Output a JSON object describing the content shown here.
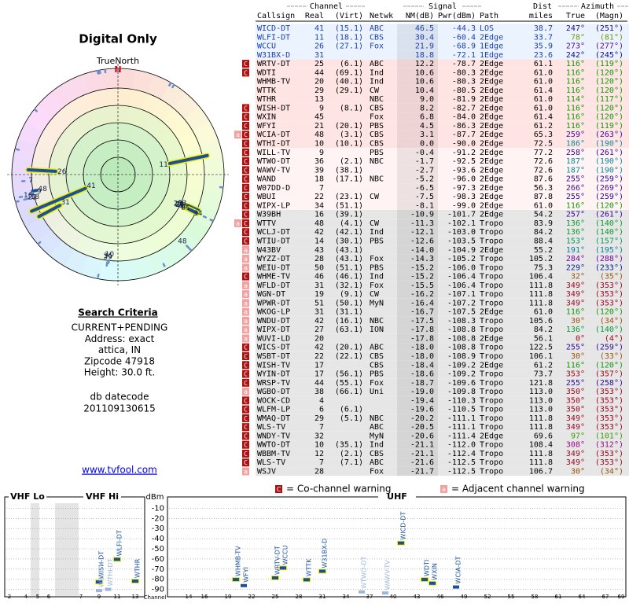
{
  "left": {
    "title": "Digital Only",
    "compass": "TrueNorth",
    "north": "N",
    "criteria_heading": "Search Criteria",
    "criteria": [
      "CURRENT+PENDING",
      "Address: exact",
      "attica, IN",
      "Zipcode 47918",
      "Height: 30.0 ft."
    ],
    "db_label": "db datecode",
    "db_code": "201109130615",
    "link": "www.tvfool.com"
  },
  "table": {
    "group_headers": [
      "Channel",
      "Signal",
      "Dist",
      "Azimuth"
    ],
    "headers": [
      "Callsign",
      "Real",
      "(Virt)",
      "Netwk",
      "NM(dB)",
      "Pwr(dBm)",
      "Path",
      "miles",
      "True",
      "(Magn)"
    ],
    "rows": [
      [
        "WICD-DT",
        41,
        "(15.1)",
        "ABC",
        "46.5",
        "-44.3",
        "LOS",
        "38.7",
        "247°",
        "(251°)",
        []
      ],
      [
        "WLFI-DT",
        11,
        "(18.1)",
        "CBS",
        "30.4",
        "-60.4",
        "2Edge",
        "33.7",
        "78°",
        "(81°)",
        []
      ],
      [
        "WCCU",
        26,
        "(27.1)",
        "Fox",
        "21.9",
        "-68.9",
        "1Edge",
        "35.9",
        "273°",
        "(277°)",
        []
      ],
      [
        "W31BX-D",
        31,
        null,
        null,
        "18.8",
        "-72.1",
        "1Edge",
        "23.6",
        "242°",
        "(245°)",
        []
      ],
      [
        "WRTV-DT",
        25,
        "(6.1)",
        "ABC",
        "12.2",
        "-78.7",
        "2Edge",
        "61.1",
        "116°",
        "(119°)",
        [
          "C"
        ]
      ],
      [
        "WDTI",
        44,
        "(69.1)",
        "Ind",
        "10.6",
        "-80.3",
        "2Edge",
        "61.0",
        "116°",
        "(120°)",
        [
          "C"
        ]
      ],
      [
        "WHMB-TV",
        20,
        "(40.1)",
        "Ind",
        "10.6",
        "-80.3",
        "2Edge",
        "61.0",
        "116°",
        "(120°)",
        []
      ],
      [
        "WTTK",
        29,
        "(29.1)",
        "CW",
        "10.4",
        "-80.5",
        "2Edge",
        "61.4",
        "116°",
        "(120°)",
        []
      ],
      [
        "WTHR",
        13,
        null,
        "NBC",
        "9.0",
        "-81.9",
        "2Edge",
        "61.0",
        "114°",
        "(117°)",
        []
      ],
      [
        "WISH-DT",
        9,
        "(8.1)",
        "CBS",
        "8.2",
        "-82.7",
        "2Edge",
        "61.0",
        "116°",
        "(120°)",
        [
          "C"
        ]
      ],
      [
        "WXIN",
        45,
        null,
        "Fox",
        "6.8",
        "-84.0",
        "2Edge",
        "61.4",
        "116°",
        "(120°)",
        [
          "C"
        ]
      ],
      [
        "WFYI",
        21,
        "(20.1)",
        "PBS",
        "4.5",
        "-86.3",
        "2Edge",
        "61.2",
        "116°",
        "(119°)",
        [
          "C"
        ]
      ],
      [
        "WCIA-DT",
        48,
        "(3.1)",
        "CBS",
        "3.1",
        "-87.7",
        "2Edge",
        "65.3",
        "259°",
        "(263°)",
        [
          "a",
          "C"
        ]
      ],
      [
        "WTHI-DT",
        10,
        "(10.1)",
        "CBS",
        "0.0",
        "-90.0",
        "2Edge",
        "72.5",
        "186°",
        "(190°)",
        [
          "C"
        ]
      ],
      [
        "WILL-TV",
        9,
        null,
        "PBS",
        "-0.4",
        "-91.2",
        "2Edge",
        "77.2",
        "258°",
        "(261°)",
        [
          "C"
        ]
      ],
      [
        "WTWO-DT",
        36,
        "(2.1)",
        "NBC",
        "-1.7",
        "-92.5",
        "2Edge",
        "72.6",
        "187°",
        "(190°)",
        [
          "C"
        ]
      ],
      [
        "WAWV-TV",
        39,
        "(38.1)",
        null,
        "-2.7",
        "-93.6",
        "2Edge",
        "72.6",
        "187°",
        "(190°)",
        [
          "C"
        ]
      ],
      [
        "WAND",
        18,
        "(17.1)",
        "NBC",
        "-5.2",
        "-96.0",
        "2Edge",
        "87.6",
        "255°",
        "(259°)",
        [
          "C"
        ]
      ],
      [
        "W07DD-D",
        7,
        null,
        null,
        "-6.5",
        "-97.3",
        "2Edge",
        "56.3",
        "266°",
        "(269°)",
        [
          "C"
        ]
      ],
      [
        "WBUI",
        22,
        "(23.1)",
        "CW",
        "-7.5",
        "-98.3",
        "2Edge",
        "87.8",
        "255°",
        "(259°)",
        [
          "C"
        ]
      ],
      [
        "WIPX-LP",
        34,
        "(51.1)",
        null,
        "-8.1",
        "-99.0",
        "2Edge",
        "61.0",
        "116°",
        "(120°)",
        [
          "C"
        ]
      ],
      [
        "W39BH",
        16,
        "(39.1)",
        null,
        "-10.9",
        "-101.7",
        "2Edge",
        "54.2",
        "257°",
        "(261°)",
        [
          "C"
        ]
      ],
      [
        "WTTV",
        48,
        "(4.1)",
        "CW",
        "-11.3",
        "-102.1",
        "Tropo",
        "83.9",
        "136°",
        "(140°)",
        [
          "a",
          "C"
        ]
      ],
      [
        "WCLJ-DT",
        42,
        "(42.1)",
        "Ind",
        "-12.1",
        "-103.0",
        "Tropo",
        "84.2",
        "136°",
        "(140°)",
        [
          "C"
        ]
      ],
      [
        "WTIU-DT",
        14,
        "(30.1)",
        "PBS",
        "-12.6",
        "-103.5",
        "Tropo",
        "88.4",
        "153°",
        "(157°)",
        [
          "C"
        ]
      ],
      [
        "W43BV",
        43,
        "(43.1)",
        null,
        "-14.0",
        "-104.9",
        "2Edge",
        "55.2",
        "191°",
        "(195°)",
        [
          "a"
        ]
      ],
      [
        "WYZZ-DT",
        28,
        "(43.1)",
        "Fox",
        "-14.3",
        "-105.2",
        "Tropo",
        "105.2",
        "284°",
        "(288°)",
        [
          "a"
        ]
      ],
      [
        "WEIU-DT",
        50,
        "(51.1)",
        "PBS",
        "-15.2",
        "-106.0",
        "Tropo",
        "75.3",
        "229°",
        "(233°)",
        [
          "a"
        ]
      ],
      [
        "WHME-TV",
        46,
        "(46.1)",
        "Ind",
        "-15.2",
        "-106.4",
        "Tropo",
        "106.4",
        "32°",
        "(35°)",
        [
          "C"
        ]
      ],
      [
        "WFLD-DT",
        31,
        "(32.1)",
        "Fox",
        "-15.5",
        "-106.4",
        "Tropo",
        "111.8",
        "349°",
        "(353°)",
        [
          "a"
        ]
      ],
      [
        "WGN-DT",
        19,
        "(9.1)",
        "CW",
        "-16.2",
        "-107.1",
        "Tropo",
        "111.8",
        "349°",
        "(353°)",
        [
          "a"
        ]
      ],
      [
        "WPWR-DT",
        51,
        "(50.1)",
        "MyN",
        "-16.4",
        "-107.2",
        "Tropo",
        "111.8",
        "349°",
        "(353°)",
        [
          "a"
        ]
      ],
      [
        "WKOG-LP",
        31,
        "(31.1)",
        null,
        "-16.7",
        "-107.5",
        "2Edge",
        "61.0",
        "116°",
        "(120°)",
        [
          "a"
        ]
      ],
      [
        "WNDU-DT",
        42,
        "(16.1)",
        "NBC",
        "-17.5",
        "-108.3",
        "Tropo",
        "105.6",
        "30°",
        "(34°)",
        [
          "a"
        ]
      ],
      [
        "WIPX-DT",
        27,
        "(63.1)",
        "ION",
        "-17.8",
        "-108.8",
        "Tropo",
        "84.2",
        "136°",
        "(140°)",
        [
          "a"
        ]
      ],
      [
        "WUVI-LD",
        20,
        null,
        null,
        "-17.8",
        "-108.8",
        "2Edge",
        "56.1",
        "0°",
        "(4°)",
        [
          "a"
        ]
      ],
      [
        "WICS-DT",
        42,
        "(20.1)",
        "ABC",
        "-18.0",
        "-108.8",
        "Tropo",
        "122.5",
        "255°",
        "(259°)",
        [
          "C"
        ]
      ],
      [
        "WSBT-DT",
        22,
        "(22.1)",
        "CBS",
        "-18.0",
        "-108.9",
        "Tropo",
        "106.1",
        "30°",
        "(33°)",
        [
          "C"
        ]
      ],
      [
        "WISH-TV",
        17,
        null,
        "CBS",
        "-18.4",
        "-109.2",
        "2Edge",
        "61.2",
        "116°",
        "(120°)",
        [
          "C"
        ]
      ],
      [
        "WYIN-DT",
        17,
        "(56.1)",
        "PBS",
        "-18.6",
        "-109.2",
        "Tropo",
        "73.7",
        "353°",
        "(357°)",
        [
          "C"
        ]
      ],
      [
        "WRSP-TV",
        44,
        "(55.1)",
        "Fox",
        "-18.7",
        "-109.6",
        "Tropo",
        "121.8",
        "255°",
        "(258°)",
        [
          "C"
        ]
      ],
      [
        "WGBO-DT",
        38,
        "(66.1)",
        "Uni",
        "-19.0",
        "-109.8",
        "Tropo",
        "113.0",
        "350°",
        "(353°)",
        [
          "a"
        ]
      ],
      [
        "WOCK-CD",
        4,
        null,
        null,
        "-19.4",
        "-110.3",
        "Tropo",
        "113.0",
        "350°",
        "(353°)",
        [
          "C"
        ]
      ],
      [
        "WLFM-LP",
        6,
        "(6.1)",
        null,
        "-19.6",
        "-110.5",
        "Tropo",
        "113.0",
        "350°",
        "(353°)",
        [
          "C"
        ]
      ],
      [
        "WMAQ-DT",
        29,
        "(5.1)",
        "NBC",
        "-20.2",
        "-111.1",
        "Tropo",
        "111.8",
        "349°",
        "(353°)",
        [
          "C"
        ]
      ],
      [
        "WLS-TV",
        7,
        null,
        "ABC",
        "-20.5",
        "-111.1",
        "Tropo",
        "111.8",
        "349°",
        "(353°)",
        [
          "C"
        ]
      ],
      [
        "WNDY-TV",
        32,
        null,
        "MyN",
        "-20.6",
        "-111.4",
        "2Edge",
        "69.6",
        "97°",
        "(101°)",
        [
          "C"
        ]
      ],
      [
        "WWTO-DT",
        10,
        "(35.1)",
        "Ind",
        "-21.1",
        "-112.0",
        "Tropo",
        "108.4",
        "308°",
        "(312°)",
        [
          "C"
        ]
      ],
      [
        "WBBM-TV",
        12,
        "(2.1)",
        "CBS",
        "-21.1",
        "-112.4",
        "Tropo",
        "111.8",
        "349°",
        "(353°)",
        [
          "C"
        ]
      ],
      [
        "WLS-TV",
        7,
        "(7.1)",
        "ABC",
        "-21.6",
        "-112.5",
        "Tropo",
        "111.8",
        "349°",
        "(353°)",
        [
          "C"
        ]
      ],
      [
        "WSJV",
        28,
        null,
        "Fox",
        "-21.7",
        "-112.5",
        "Tropo",
        "106.7",
        "30°",
        "(34°)",
        [
          "a"
        ]
      ]
    ]
  },
  "legend": [
    {
      "mark": "C",
      "text": "= Co-channel warning"
    },
    {
      "mark": "a",
      "text": "= Adjacent channel warning"
    }
  ],
  "spectrum": {
    "y_label": "dBm",
    "x_label": "Channel",
    "bands": [
      "VHF Lo",
      "VHF Hi",
      "UHF"
    ],
    "ylim": [
      -95,
      -5
    ],
    "yticks": [
      -10,
      -20,
      -30,
      -40,
      -50,
      -60,
      -70,
      -80,
      -90
    ],
    "vhf_xticks": [
      2,
      4,
      5,
      6,
      7,
      9,
      11,
      13
    ],
    "uhf_xticks": [
      14,
      16,
      19,
      22,
      25,
      28,
      31,
      34,
      37,
      40,
      43,
      46,
      49,
      52,
      55,
      58,
      61,
      64,
      67,
      69
    ]
  }
}
